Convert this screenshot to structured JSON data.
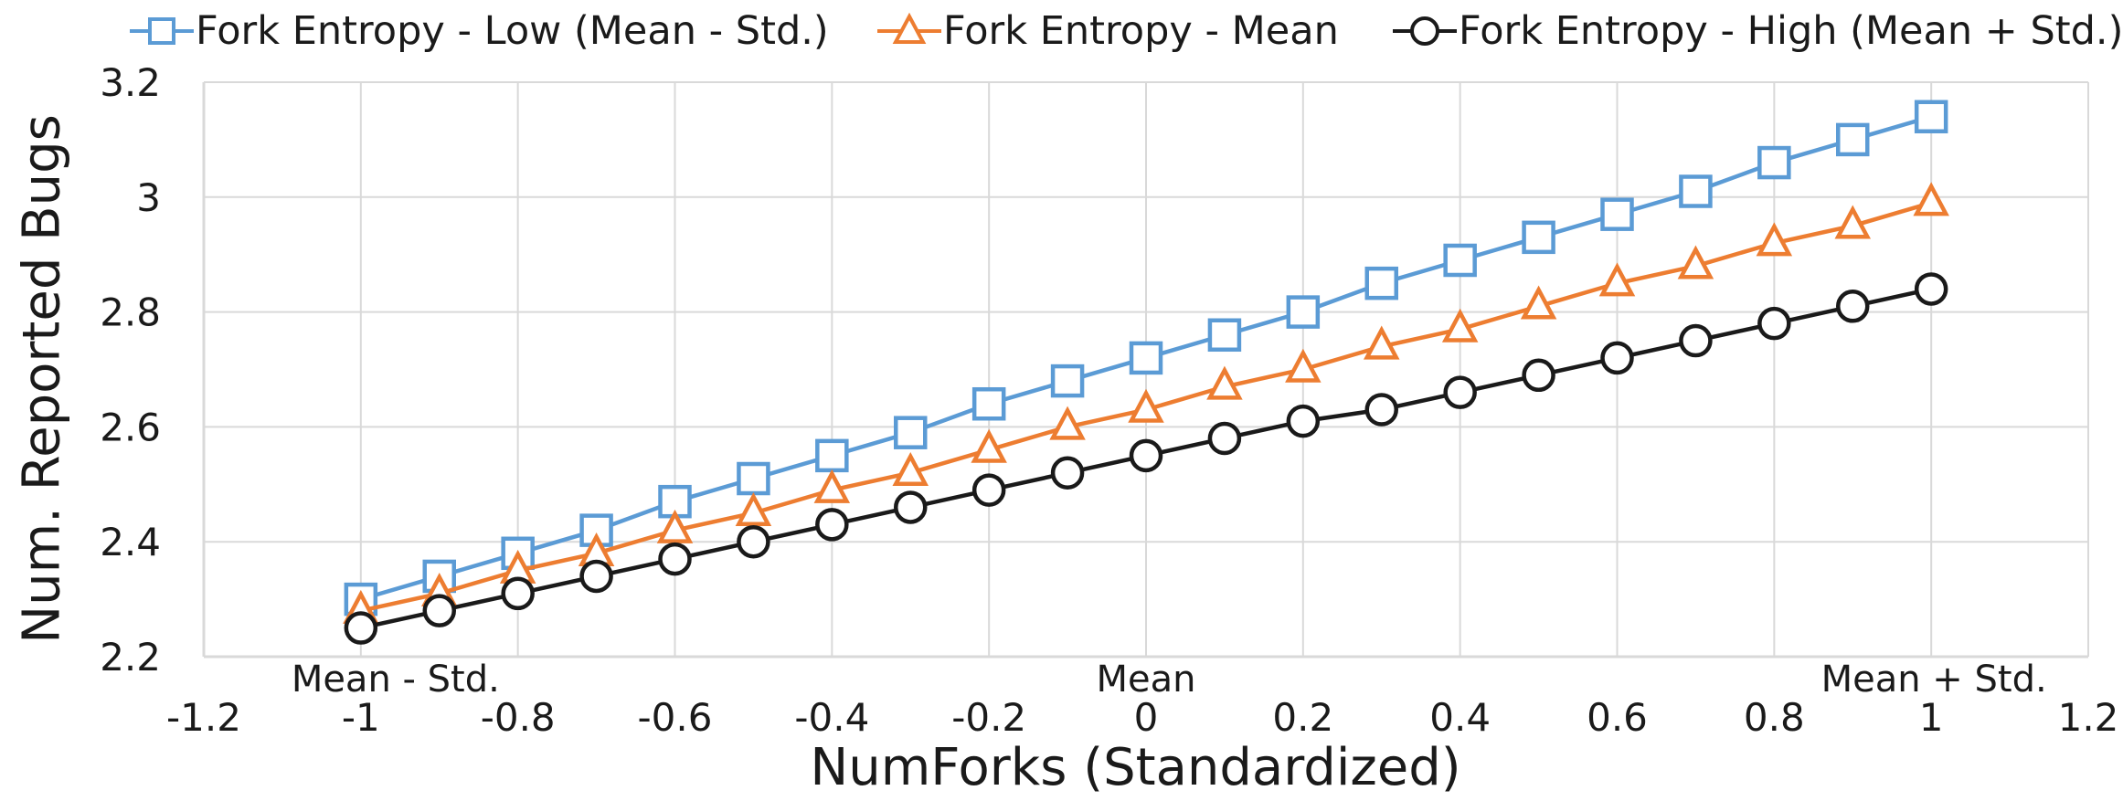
{
  "chart_data": {
    "type": "line",
    "title": "",
    "xlabel": "NumForks (Standardized)",
    "ylabel": "Num. Reported Bugs",
    "xlim": [
      -1.2,
      1.2
    ],
    "ylim": [
      2.2,
      3.2
    ],
    "x_ticks": [
      "-1.2",
      "-1",
      "-0.8",
      "-0.6",
      "-0.4",
      "-0.2",
      "0",
      "0.2",
      "0.4",
      "0.6",
      "0.8",
      "1",
      "1.2"
    ],
    "y_ticks": [
      "2.2",
      "2.4",
      "2.6",
      "2.8",
      "3",
      "3.2"
    ],
    "grid": true,
    "legend_position": "top",
    "x": [
      -1,
      -0.9,
      -0.8,
      -0.7,
      -0.6,
      -0.5,
      -0.4,
      -0.3,
      -0.2,
      -0.1,
      0,
      0.1,
      0.2,
      0.3,
      0.4,
      0.5,
      0.6,
      0.7,
      0.8,
      0.9,
      1
    ],
    "series": [
      {
        "name": "Fork Entropy - Low (Mean - Std.)",
        "marker": "square",
        "color": "#5B9BD5",
        "values": [
          2.3,
          2.34,
          2.38,
          2.42,
          2.47,
          2.51,
          2.55,
          2.59,
          2.64,
          2.68,
          2.72,
          2.76,
          2.8,
          2.85,
          2.89,
          2.93,
          2.97,
          3.01,
          3.06,
          3.1,
          3.14
        ]
      },
      {
        "name": "Fork Entropy - Mean",
        "marker": "triangle",
        "color": "#ED7D31",
        "values": [
          2.28,
          2.31,
          2.35,
          2.38,
          2.42,
          2.45,
          2.49,
          2.52,
          2.56,
          2.6,
          2.63,
          2.67,
          2.7,
          2.74,
          2.77,
          2.81,
          2.85,
          2.88,
          2.92,
          2.95,
          2.99
        ]
      },
      {
        "name": "Fork Entropy - High (Mean + Std.)",
        "marker": "circle",
        "color": "#1A1A1A",
        "values": [
          2.25,
          2.28,
          2.31,
          2.34,
          2.37,
          2.4,
          2.43,
          2.46,
          2.49,
          2.52,
          2.55,
          2.58,
          2.61,
          2.63,
          2.66,
          2.69,
          2.72,
          2.75,
          2.78,
          2.81,
          2.84
        ]
      }
    ],
    "annotations": [
      {
        "text": "Mean - Std.",
        "x": -1
      },
      {
        "text": "Mean",
        "x": 0
      },
      {
        "text": "Mean + Std.",
        "x": 1
      }
    ],
    "colors": {
      "grid": "#D9D9D9",
      "axis": "#D9D9D9",
      "text": "#1A1A1A"
    }
  }
}
